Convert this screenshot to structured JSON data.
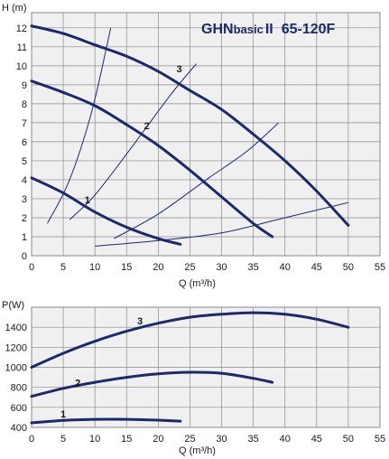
{
  "chart_data": [
    {
      "type": "line",
      "title": "GHNbasicII 65-120F",
      "title_parts": {
        "brand": "GHN",
        "sub": "basic",
        "suffix": "II",
        "model": "65-120F"
      },
      "xlabel": "Q (m³/h)",
      "ylabel": "H (m)",
      "xlim": [
        0,
        55
      ],
      "ylim": [
        0,
        12.8
      ],
      "x_ticks": [
        "0",
        "5",
        "10",
        "15",
        "20",
        "25",
        "30",
        "35",
        "40",
        "45",
        "50",
        "55"
      ],
      "y_ticks": [
        "0",
        "1",
        "2",
        "3",
        "4",
        "5",
        "6",
        "7",
        "8",
        "9",
        "10",
        "11",
        "12"
      ],
      "grid": true,
      "series": [
        {
          "name": "1",
          "x": [
            0,
            5,
            10,
            15,
            20,
            23.5
          ],
          "y": [
            4.1,
            3.3,
            2.3,
            1.5,
            0.9,
            0.6
          ]
        },
        {
          "name": "2",
          "x": [
            0,
            5,
            10,
            15,
            20,
            25,
            30,
            35,
            38
          ],
          "y": [
            9.2,
            8.6,
            7.9,
            6.9,
            5.8,
            4.5,
            3.1,
            1.7,
            1.0
          ]
        },
        {
          "name": "3",
          "x": [
            0,
            5,
            10,
            15,
            20,
            25,
            30,
            35,
            40,
            45,
            50
          ],
          "y": [
            12.1,
            11.7,
            11.1,
            10.5,
            9.7,
            8.7,
            7.7,
            6.4,
            5.0,
            3.4,
            1.6
          ]
        }
      ],
      "system_curves": [
        {
          "x": [
            2.5,
            6,
            9.5,
            12.5
          ],
          "y": [
            1.7,
            4.0,
            7.6,
            12.0
          ]
        },
        {
          "x": [
            6,
            10,
            16,
            22,
            26
          ],
          "y": [
            1.9,
            3.2,
            5.8,
            8.5,
            10.1
          ]
        },
        {
          "x": [
            13,
            20,
            28,
            34,
            39
          ],
          "y": [
            0.9,
            2.2,
            4.1,
            5.5,
            7.0
          ]
        },
        {
          "x": [
            10,
            20,
            30,
            40,
            50
          ],
          "y": [
            0.5,
            0.8,
            1.2,
            2.0,
            2.8
          ]
        }
      ]
    },
    {
      "type": "line",
      "title": "",
      "xlabel": "Q (m³/h)",
      "ylabel": "P(W)",
      "xlim": [
        0,
        55
      ],
      "ylim": [
        400,
        1600
      ],
      "x_ticks": [
        "0",
        "5",
        "10",
        "15",
        "20",
        "25",
        "30",
        "35",
        "40",
        "45",
        "50",
        "55"
      ],
      "y_ticks": [
        "400",
        "600",
        "800",
        "1000",
        "1200",
        "1400"
      ],
      "grid": true,
      "series": [
        {
          "name": "1",
          "x": [
            0,
            5,
            10,
            15,
            20,
            23.5
          ],
          "y": [
            445,
            470,
            480,
            480,
            472,
            462
          ]
        },
        {
          "name": "2",
          "x": [
            0,
            5,
            10,
            15,
            20,
            25,
            30,
            35,
            38
          ],
          "y": [
            710,
            790,
            850,
            900,
            935,
            950,
            940,
            890,
            850
          ]
        },
        {
          "name": "3",
          "x": [
            0,
            5,
            10,
            15,
            20,
            25,
            30,
            35,
            40,
            45,
            50
          ],
          "y": [
            1000,
            1140,
            1260,
            1360,
            1440,
            1500,
            1530,
            1545,
            1530,
            1480,
            1400
          ]
        }
      ]
    }
  ],
  "colors": {
    "curve": "#1c2a6b",
    "system": "#1c2a6b",
    "grid": "#8a8a8a",
    "plot_bg": "#f0f0f0",
    "text": "#1a1a1a"
  }
}
